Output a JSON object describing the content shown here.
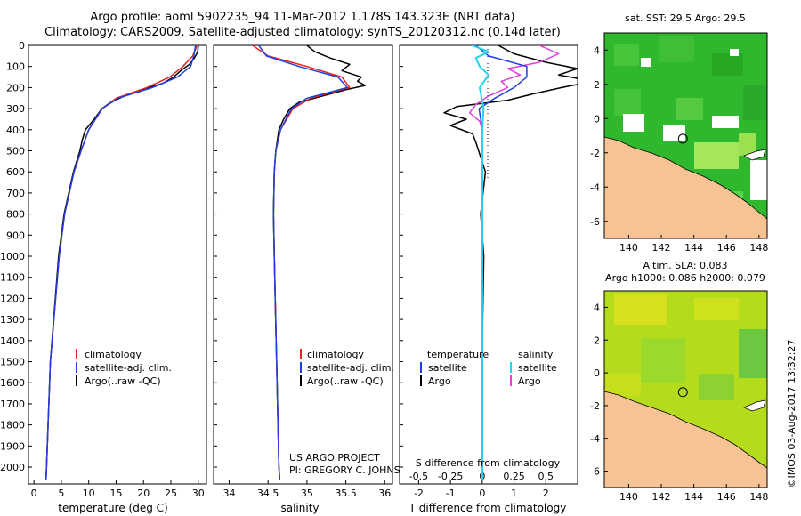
{
  "header": {
    "title_line1": "Argo profile: aoml 5902235_94 11-Mar-2012 1.178S 143.323E (NRT data)",
    "title_line2": "Climatology: CARS2009. Satellite-adjusted climatology: synTS_20120312.nc (0.14d later)"
  },
  "depth_axis": {
    "ylim": [
      0,
      2080
    ],
    "ticks": [
      0,
      100,
      200,
      300,
      400,
      500,
      600,
      700,
      800,
      900,
      1000,
      1100,
      1200,
      1300,
      1400,
      1500,
      1600,
      1700,
      1800,
      1900,
      2000
    ]
  },
  "colors": {
    "climatology": "#e8231c",
    "satellite": "#1d3fe0",
    "argo": "#000000",
    "sal_satellite": "#22d3ee",
    "sal_argo": "#e23fd6"
  },
  "chart_data": [
    {
      "type": "line",
      "id": "temperature",
      "xlabel": "temperature (deg C)",
      "xlim": [
        -1,
        31.5
      ],
      "xticks": [
        0,
        5,
        10,
        15,
        20,
        25,
        30
      ],
      "legend": [
        "climatology",
        "satellite-adj. clim.",
        "Argo(..raw -QC)"
      ],
      "series": [
        {
          "name": "climatology",
          "depth": [
            0,
            50,
            100,
            150,
            200,
            250,
            300,
            400,
            500,
            600,
            800,
            1000,
            1500,
            2000,
            2060
          ],
          "values": [
            29.8,
            29.0,
            27.2,
            24.8,
            20.6,
            15.0,
            12.5,
            10.0,
            8.6,
            7.3,
            5.6,
            4.6,
            3.0,
            2.3,
            2.2
          ]
        },
        {
          "name": "satellite-adj. clim.",
          "depth": [
            0,
            50,
            100,
            150,
            200,
            250,
            300,
            400,
            500,
            600,
            800,
            1000,
            1500,
            2000,
            2060
          ],
          "values": [
            29.5,
            29.2,
            28.6,
            26.2,
            21.6,
            15.4,
            12.4,
            10.0,
            8.6,
            7.3,
            5.6,
            4.6,
            3.0,
            2.3,
            2.2
          ]
        },
        {
          "name": "Argo(..raw -QC)",
          "depth": [
            0,
            30,
            60,
            90,
            120,
            150,
            180,
            210,
            240,
            270,
            300,
            350,
            400,
            450,
            500,
            600,
            800,
            1000,
            1500,
            2000,
            2060
          ],
          "values": [
            30.0,
            29.9,
            29.3,
            28.4,
            26.8,
            25.5,
            23.5,
            19.6,
            16.5,
            14.0,
            12.4,
            11.0,
            9.4,
            8.8,
            8.4,
            7.2,
            5.5,
            4.5,
            3.0,
            2.3,
            2.2
          ]
        }
      ]
    },
    {
      "type": "line",
      "id": "salinity",
      "xlabel": "salinity",
      "xlim": [
        33.8,
        36.1
      ],
      "xticks": [
        34,
        34.5,
        35,
        35.5,
        36
      ],
      "legend": [
        "climatology",
        "satellite-adj. clim.",
        "Argo(..raw -QC)"
      ],
      "annotation": [
        "US ARGO PROJECT",
        "PI: GREGORY C. JOHNSON"
      ],
      "series": [
        {
          "name": "climatology",
          "depth": [
            0,
            50,
            100,
            150,
            200,
            250,
            300,
            400,
            500,
            600,
            800,
            1000,
            1500,
            2000,
            2060
          ],
          "values": [
            34.3,
            34.5,
            35.0,
            35.45,
            35.55,
            35.05,
            34.82,
            34.66,
            34.6,
            34.58,
            34.57,
            34.58,
            34.61,
            34.64,
            34.65
          ]
        },
        {
          "name": "satellite-adj. clim.",
          "depth": [
            0,
            50,
            100,
            150,
            200,
            250,
            300,
            400,
            500,
            600,
            800,
            1000,
            1500,
            2000,
            2060
          ],
          "values": [
            34.38,
            34.48,
            34.9,
            35.4,
            35.52,
            35.0,
            34.8,
            34.66,
            34.6,
            34.58,
            34.57,
            34.58,
            34.61,
            34.64,
            34.65
          ]
        },
        {
          "name": "Argo(..raw -QC)",
          "depth": [
            0,
            30,
            60,
            90,
            120,
            150,
            170,
            190,
            210,
            240,
            270,
            300,
            350,
            400,
            500,
            600,
            800,
            1000,
            1500,
            2000,
            2060
          ],
          "values": [
            35.0,
            35.1,
            35.3,
            35.55,
            35.45,
            35.7,
            35.65,
            35.75,
            35.5,
            35.2,
            34.9,
            34.78,
            34.7,
            34.64,
            34.6,
            34.58,
            34.57,
            34.58,
            34.61,
            34.64,
            34.65
          ]
        }
      ]
    },
    {
      "type": "line",
      "id": "difference",
      "xlabel_top": "S difference from climatology",
      "xlabel_bottom": "T difference from climatology",
      "xlim": [
        -2.6,
        3.0
      ],
      "xticks_bottom": [
        -2,
        -1,
        0,
        1,
        2
      ],
      "xtick_labels_top": [
        "-0.5",
        "-0.25",
        "0",
        "0.25",
        "0.5"
      ],
      "legend_temperature": [
        "temperature",
        "satellite",
        "Argo"
      ],
      "legend_salinity": [
        "salinity",
        "satellite",
        "Argo"
      ],
      "series": [
        {
          "name": "T satellite",
          "depth": [
            0,
            50,
            100,
            150,
            200,
            250,
            300,
            400,
            600,
            1000,
            2060
          ],
          "values": [
            -0.2,
            0.2,
            1.4,
            1.4,
            1.0,
            0.4,
            -0.1,
            0,
            0,
            0,
            0
          ]
        },
        {
          "name": "T Argo",
          "depth": [
            0,
            40,
            80,
            110,
            140,
            170,
            200,
            230,
            260,
            290,
            320,
            350,
            380,
            420,
            460,
            600,
            800,
            1000,
            1400,
            2060
          ],
          "values": [
            0.5,
            1.0,
            2.0,
            3.0,
            2.4,
            3.5,
            2.5,
            1.6,
            0.8,
            -0.8,
            -1.2,
            -0.5,
            -1.0,
            -0.3,
            -0.2,
            0.1,
            -0.05,
            0.05,
            0,
            0
          ]
        },
        {
          "name": "S satellite",
          "depth": [
            0,
            30,
            60,
            100,
            140,
            200,
            300,
            400,
            600,
            1000,
            2060
          ],
          "values": [
            -0.08,
            0.05,
            -0.05,
            -0.02,
            0.05,
            -0.02,
            0.01,
            0,
            0,
            0,
            0
          ]
        },
        {
          "name": "S Argo",
          "depth": [
            0,
            40,
            80,
            110,
            140,
            170,
            200,
            240,
            280,
            320,
            360,
            400,
            600,
            1000,
            2060
          ],
          "values": [
            0.45,
            0.6,
            0.45,
            0.2,
            0.3,
            0.15,
            0.2,
            0.05,
            -0.05,
            -0.1,
            -0.02,
            0,
            0,
            0,
            0
          ]
        }
      ]
    },
    {
      "type": "heatmap",
      "id": "sst_map",
      "title": "sat. SST: 29.5 Argo: 29.5",
      "xlim": [
        138.5,
        148.5
      ],
      "ylim": [
        -7,
        5
      ],
      "xticks": [
        140,
        142,
        144,
        146,
        148
      ],
      "yticks": [
        4,
        2,
        0,
        -2,
        -4,
        -6
      ],
      "argo_location": [
        143.323,
        -1.178
      ]
    },
    {
      "type": "heatmap",
      "id": "sla_map",
      "title_line1": "Altim. SLA: 0.083",
      "title_line2": "Argo h1000: 0.086 h2000: 0.079",
      "xlim": [
        138.5,
        148.5
      ],
      "ylim": [
        -7,
        5
      ],
      "xticks": [
        140,
        142,
        144,
        146,
        148
      ],
      "yticks": [
        4,
        2,
        0,
        -2,
        -4,
        -6
      ],
      "argo_location": [
        143.323,
        -1.178
      ]
    }
  ],
  "footer": {
    "credit": "©IMOS 03-Aug-2017 13:32:27"
  }
}
